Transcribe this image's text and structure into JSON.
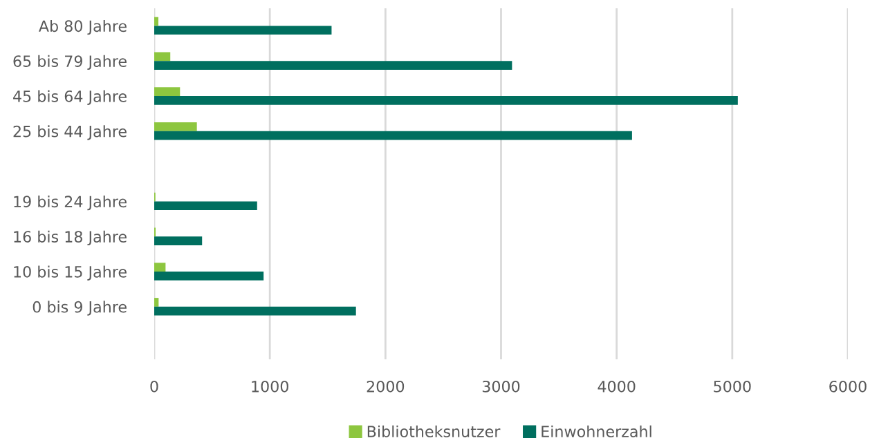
{
  "chart_data": {
    "type": "bar",
    "orientation": "horizontal",
    "categories": [
      "Ab 80 Jahre",
      "65 bis 79 Jahre",
      "45 bis 64 Jahre",
      "25 bis 44 Jahre",
      null,
      "19 bis 24 Jahre",
      "16 bis 18 Jahre",
      "10 bis 15 Jahre",
      "0 bis 9 Jahre",
      null
    ],
    "series": [
      {
        "name": "Bibliotheksnutzer",
        "color": "#8dc63f",
        "values": [
          36,
          139,
          223,
          369,
          null,
          10,
          12,
          98,
          38,
          null
        ]
      },
      {
        "name": "Einwohnerzahl",
        "color": "#006f5f",
        "values": [
          1534,
          3095,
          5048,
          4133,
          null,
          890,
          414,
          946,
          1745,
          null
        ]
      }
    ],
    "xlim": [
      0,
      6000
    ],
    "xticks": [
      0,
      1000,
      2000,
      3000,
      4000,
      5000,
      6000
    ],
    "grid": "x",
    "legend": "bottom"
  }
}
